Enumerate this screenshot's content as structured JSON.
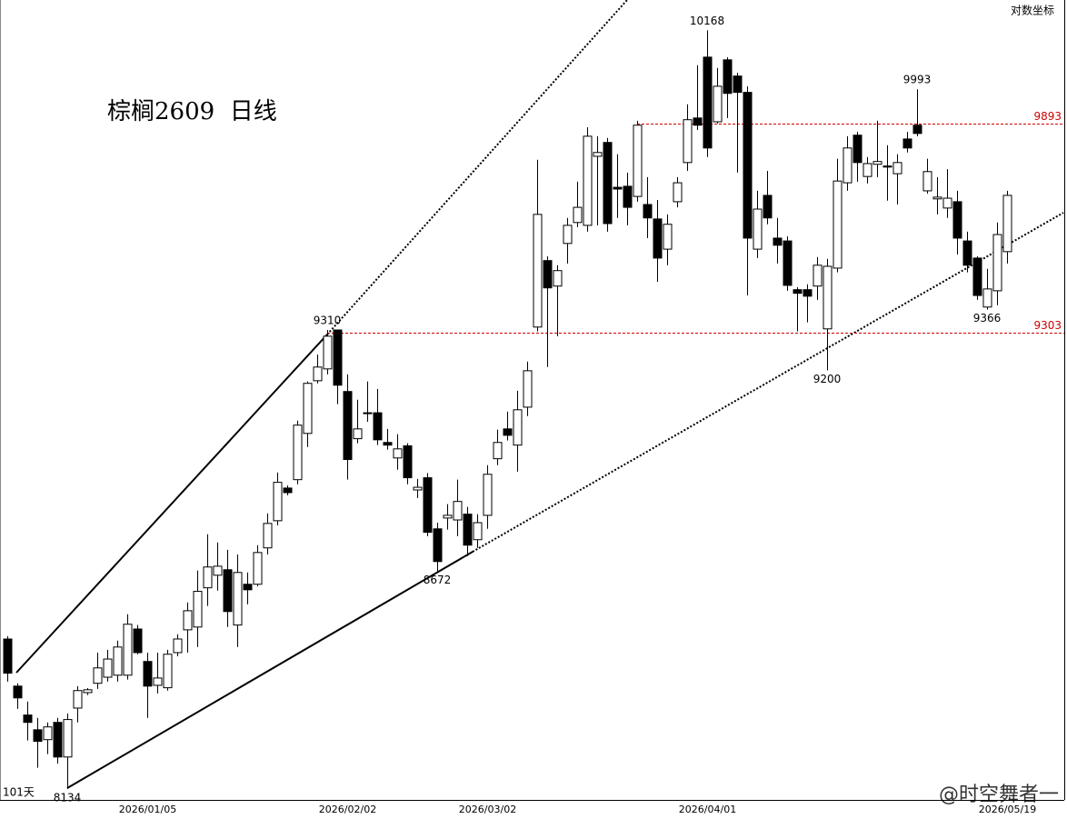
{
  "chart_data": {
    "type": "candlestick",
    "title": "棕榈2609  日线",
    "scale_label": "对数坐标",
    "count_label": "101天",
    "watermark": "@时空舞者一",
    "log_scale": true,
    "ylim": [
      8108,
      10259
    ],
    "up_color": "#ffffff",
    "down_color": "#000000",
    "hline_color": "#d00000",
    "hlines": [
      9893,
      9303
    ],
    "extreme_labels": [
      10168,
      9993,
      9310,
      8672,
      8134,
      9200,
      9366
    ],
    "categories": [
      null,
      null,
      null,
      null,
      null,
      null,
      null,
      null,
      null,
      null,
      null,
      null,
      null,
      null,
      "2026/01/05",
      null,
      null,
      null,
      null,
      null,
      null,
      null,
      null,
      null,
      null,
      null,
      null,
      null,
      null,
      null,
      null,
      null,
      null,
      null,
      "2026/02/02",
      null,
      null,
      null,
      null,
      null,
      null,
      null,
      null,
      null,
      null,
      null,
      null,
      null,
      "2026/03/02",
      null,
      null,
      null,
      null,
      null,
      null,
      null,
      null,
      null,
      null,
      null,
      null,
      null,
      null,
      null,
      null,
      null,
      null,
      null,
      null,
      null,
      "2026/04/01",
      null,
      null,
      null,
      null,
      null,
      null,
      null,
      null,
      null,
      null,
      null,
      null,
      null,
      null,
      null,
      null,
      null,
      null,
      null,
      null,
      null,
      null,
      null,
      null,
      null,
      null,
      null,
      null,
      null,
      "2026/05/19"
    ],
    "ohlc": [
      [
        8501,
        8508,
        8395,
        8416
      ],
      [
        8384,
        8391,
        8328,
        8355
      ],
      [
        8313,
        8346,
        8251,
        8295
      ],
      [
        8277,
        8306,
        8185,
        8249
      ],
      [
        8253,
        8295,
        8218,
        8284
      ],
      [
        8295,
        8306,
        8195,
        8211
      ],
      [
        8211,
        8317,
        8134,
        8302
      ],
      [
        8330,
        8384,
        8295,
        8373
      ],
      [
        8368,
        8379,
        8362,
        8375
      ],
      [
        8391,
        8467,
        8377,
        8429
      ],
      [
        8406,
        8474,
        8395,
        8451
      ],
      [
        8411,
        8497,
        8395,
        8481
      ],
      [
        8411,
        8563,
        8400,
        8538
      ],
      [
        8526,
        8536,
        8463,
        8467
      ],
      [
        8445,
        8467,
        8306,
        8384
      ],
      [
        8386,
        8467,
        8366,
        8404
      ],
      [
        8380,
        8474,
        8373,
        8463
      ],
      [
        8467,
        8513,
        8458,
        8501
      ],
      [
        8524,
        8593,
        8467,
        8572
      ],
      [
        8531,
        8674,
        8481,
        8621
      ],
      [
        8630,
        8767,
        8584,
        8683
      ],
      [
        8662,
        8746,
        8623,
        8685
      ],
      [
        8676,
        8727,
        8531,
        8570
      ],
      [
        8536,
        8715,
        8481,
        8669
      ],
      [
        8639,
        8669,
        8588,
        8625
      ],
      [
        8639,
        8739,
        8634,
        8720
      ],
      [
        8732,
        8821,
        8715,
        8795
      ],
      [
        8802,
        8928,
        8790,
        8902
      ],
      [
        8887,
        8894,
        8868,
        8875
      ],
      [
        8909,
        9065,
        8897,
        9053
      ],
      [
        9031,
        9170,
        8995,
        9165
      ],
      [
        9172,
        9243,
        9165,
        9209
      ],
      [
        9204,
        9310,
        9189,
        9293
      ],
      [
        9310,
        9310,
        9109,
        9160
      ],
      [
        9143,
        9189,
        8909,
        8962
      ],
      [
        9017,
        9121,
        9005,
        9043
      ],
      [
        9086,
        9170,
        9062,
        9084
      ],
      [
        9086,
        9150,
        9000,
        9014
      ],
      [
        9007,
        9043,
        8988,
        9000
      ],
      [
        8966,
        9029,
        8935,
        8990
      ],
      [
        8998,
        9005,
        8897,
        8914
      ],
      [
        8882,
        8911,
        8861,
        8889
      ],
      [
        8914,
        8926,
        8762,
        8772
      ],
      [
        8781,
        8797,
        8672,
        8697
      ],
      [
        8809,
        8845,
        8779,
        8816
      ],
      [
        8804,
        8909,
        8762,
        8852
      ],
      [
        8819,
        8838,
        8711,
        8739
      ],
      [
        8753,
        8819,
        8732,
        8797
      ],
      [
        8816,
        8947,
        8781,
        8923
      ],
      [
        8964,
        9041,
        8947,
        9007
      ],
      [
        9043,
        9089,
        9012,
        9026
      ],
      [
        9000,
        9145,
        8930,
        9094
      ],
      [
        9101,
        9224,
        9077,
        9199
      ],
      [
        9318,
        9788,
        9306,
        9632
      ],
      [
        9502,
        9514,
        9209,
        9426
      ],
      [
        9431,
        9489,
        9293,
        9474
      ],
      [
        9550,
        9622,
        9494,
        9601
      ],
      [
        9609,
        9725,
        9596,
        9652
      ],
      [
        9601,
        9882,
        9583,
        9856
      ],
      [
        9798,
        9856,
        9601,
        9809
      ],
      [
        9838,
        9851,
        9583,
        9606
      ],
      [
        9709,
        9804,
        9622,
        9704
      ],
      [
        9712,
        9751,
        9601,
        9652
      ],
      [
        9683,
        9901,
        9668,
        9888
      ],
      [
        9660,
        9738,
        9565,
        9622
      ],
      [
        9619,
        9673,
        9443,
        9509
      ],
      [
        9534,
        9632,
        9489,
        9604
      ],
      [
        9668,
        9738,
        9652,
        9722
      ],
      [
        9780,
        9949,
        9756,
        9904
      ],
      [
        9909,
        10064,
        9874,
        9888
      ],
      [
        10088,
        10168,
        9796,
        9822
      ],
      [
        9898,
        10056,
        9893,
        10002
      ],
      [
        10080,
        10088,
        9909,
        9981
      ],
      [
        10032,
        10042,
        9751,
        9984
      ],
      [
        9984,
        10002,
        9405,
        9565
      ],
      [
        9534,
        9699,
        9509,
        9647
      ],
      [
        9686,
        9756,
        9604,
        9622
      ],
      [
        9565,
        9622,
        9494,
        9545
      ],
      [
        9557,
        9570,
        9418,
        9433
      ],
      [
        9421,
        9428,
        9306,
        9411
      ],
      [
        9421,
        9436,
        9331,
        9403
      ],
      [
        9431,
        9512,
        9393,
        9489
      ],
      [
        9313,
        9507,
        9200,
        9486
      ],
      [
        9481,
        9791,
        9469,
        9727
      ],
      [
        9722,
        9856,
        9699,
        9822
      ],
      [
        9859,
        9869,
        9725,
        9780
      ],
      [
        9740,
        9796,
        9720,
        9777
      ],
      [
        9775,
        9901,
        9738,
        9783
      ],
      [
        9770,
        9830,
        9671,
        9767
      ],
      [
        9748,
        9804,
        9660,
        9780
      ],
      [
        9848,
        9869,
        9809,
        9822
      ],
      [
        9888,
        9993,
        9856,
        9864
      ],
      [
        9699,
        9791,
        9691,
        9754
      ],
      [
        9676,
        9738,
        9632,
        9681
      ],
      [
        9650,
        9761,
        9622,
        9678
      ],
      [
        9668,
        9699,
        9519,
        9565
      ],
      [
        9557,
        9583,
        9469,
        9489
      ],
      [
        9509,
        9514,
        9393,
        9405
      ],
      [
        9373,
        9479,
        9366,
        9423
      ],
      [
        9418,
        9609,
        9378,
        9575
      ],
      [
        9527,
        9699,
        9494,
        9686
      ]
    ]
  }
}
